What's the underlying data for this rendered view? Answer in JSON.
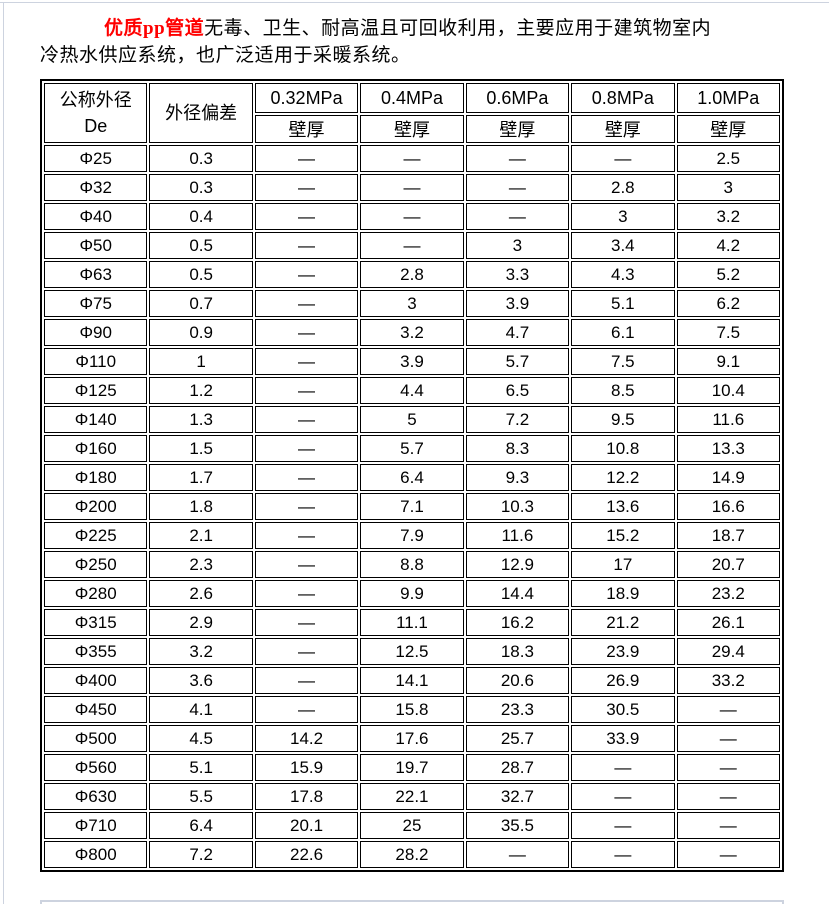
{
  "intro": {
    "highlight": "优质pp管道",
    "line1_rest": "无毒、卫生、耐高温且可回收利用，主要应用于建筑物室内",
    "line2": "冷热水供应系统，也广泛适用于采暖系统。"
  },
  "table": {
    "headers": {
      "diameter_line1": "公称外径",
      "diameter_line2": "De",
      "deviation": "外径偏差",
      "pressures": [
        "0.32MPa",
        "0.4MPa",
        "0.6MPa",
        "0.8MPa",
        "1.0MPa"
      ],
      "wall_label": "壁厚"
    },
    "rows": [
      {
        "de": "Φ25",
        "dev": "0.3",
        "v": [
          "—",
          "—",
          "—",
          "—",
          "2.5"
        ]
      },
      {
        "de": "Φ32",
        "dev": "0.3",
        "v": [
          "—",
          "—",
          "—",
          "2.8",
          "3"
        ]
      },
      {
        "de": "Φ40",
        "dev": "0.4",
        "v": [
          "—",
          "—",
          "—",
          "3",
          "3.2"
        ]
      },
      {
        "de": "Φ50",
        "dev": "0.5",
        "v": [
          "—",
          "—",
          "3",
          "3.4",
          "4.2"
        ]
      },
      {
        "de": "Φ63",
        "dev": "0.5",
        "v": [
          "—",
          "2.8",
          "3.3",
          "4.3",
          "5.2"
        ]
      },
      {
        "de": "Φ75",
        "dev": "0.7",
        "v": [
          "—",
          "3",
          "3.9",
          "5.1",
          "6.2"
        ]
      },
      {
        "de": "Φ90",
        "dev": "0.9",
        "v": [
          "—",
          "3.2",
          "4.7",
          "6.1",
          "7.5"
        ]
      },
      {
        "de": "Φ110",
        "dev": "1",
        "v": [
          "—",
          "3.9",
          "5.7",
          "7.5",
          "9.1"
        ]
      },
      {
        "de": "Φ125",
        "dev": "1.2",
        "v": [
          "—",
          "4.4",
          "6.5",
          "8.5",
          "10.4"
        ]
      },
      {
        "de": "Φ140",
        "dev": "1.3",
        "v": [
          "—",
          "5",
          "7.2",
          "9.5",
          "11.6"
        ]
      },
      {
        "de": "Φ160",
        "dev": "1.5",
        "v": [
          "—",
          "5.7",
          "8.3",
          "10.8",
          "13.3"
        ]
      },
      {
        "de": "Φ180",
        "dev": "1.7",
        "v": [
          "—",
          "6.4",
          "9.3",
          "12.2",
          "14.9"
        ]
      },
      {
        "de": "Φ200",
        "dev": "1.8",
        "v": [
          "—",
          "7.1",
          "10.3",
          "13.6",
          "16.6"
        ]
      },
      {
        "de": "Φ225",
        "dev": "2.1",
        "v": [
          "—",
          "7.9",
          "11.6",
          "15.2",
          "18.7"
        ]
      },
      {
        "de": "Φ250",
        "dev": "2.3",
        "v": [
          "—",
          "8.8",
          "12.9",
          "17",
          "20.7"
        ]
      },
      {
        "de": "Φ280",
        "dev": "2.6",
        "v": [
          "—",
          "9.9",
          "14.4",
          "18.9",
          "23.2"
        ]
      },
      {
        "de": "Φ315",
        "dev": "2.9",
        "v": [
          "—",
          "11.1",
          "16.2",
          "21.2",
          "26.1"
        ]
      },
      {
        "de": "Φ355",
        "dev": "3.2",
        "v": [
          "—",
          "12.5",
          "18.3",
          "23.9",
          "29.4"
        ]
      },
      {
        "de": "Φ400",
        "dev": "3.6",
        "v": [
          "—",
          "14.1",
          "20.6",
          "26.9",
          "33.2"
        ]
      },
      {
        "de": "Φ450",
        "dev": "4.1",
        "v": [
          "—",
          "15.8",
          "23.3",
          "30.5",
          "—"
        ]
      },
      {
        "de": "Φ500",
        "dev": "4.5",
        "v": [
          "14.2",
          "17.6",
          "25.7",
          "33.9",
          "—"
        ]
      },
      {
        "de": "Φ560",
        "dev": "5.1",
        "v": [
          "15.9",
          "19.7",
          "28.7",
          "—",
          "—"
        ]
      },
      {
        "de": "Φ630",
        "dev": "5.5",
        "v": [
          "17.8",
          "22.1",
          "32.7",
          "—",
          "—"
        ]
      },
      {
        "de": "Φ710",
        "dev": "6.4",
        "v": [
          "20.1",
          "25",
          "35.5",
          "—",
          "—"
        ]
      },
      {
        "de": "Φ800",
        "dev": "7.2",
        "v": [
          "22.6",
          "28.2",
          "—",
          "—",
          "—"
        ]
      }
    ]
  },
  "colors": {
    "highlight_red": "#ff0000",
    "table_border": "#000000",
    "page_frame": "#cdd3df"
  }
}
